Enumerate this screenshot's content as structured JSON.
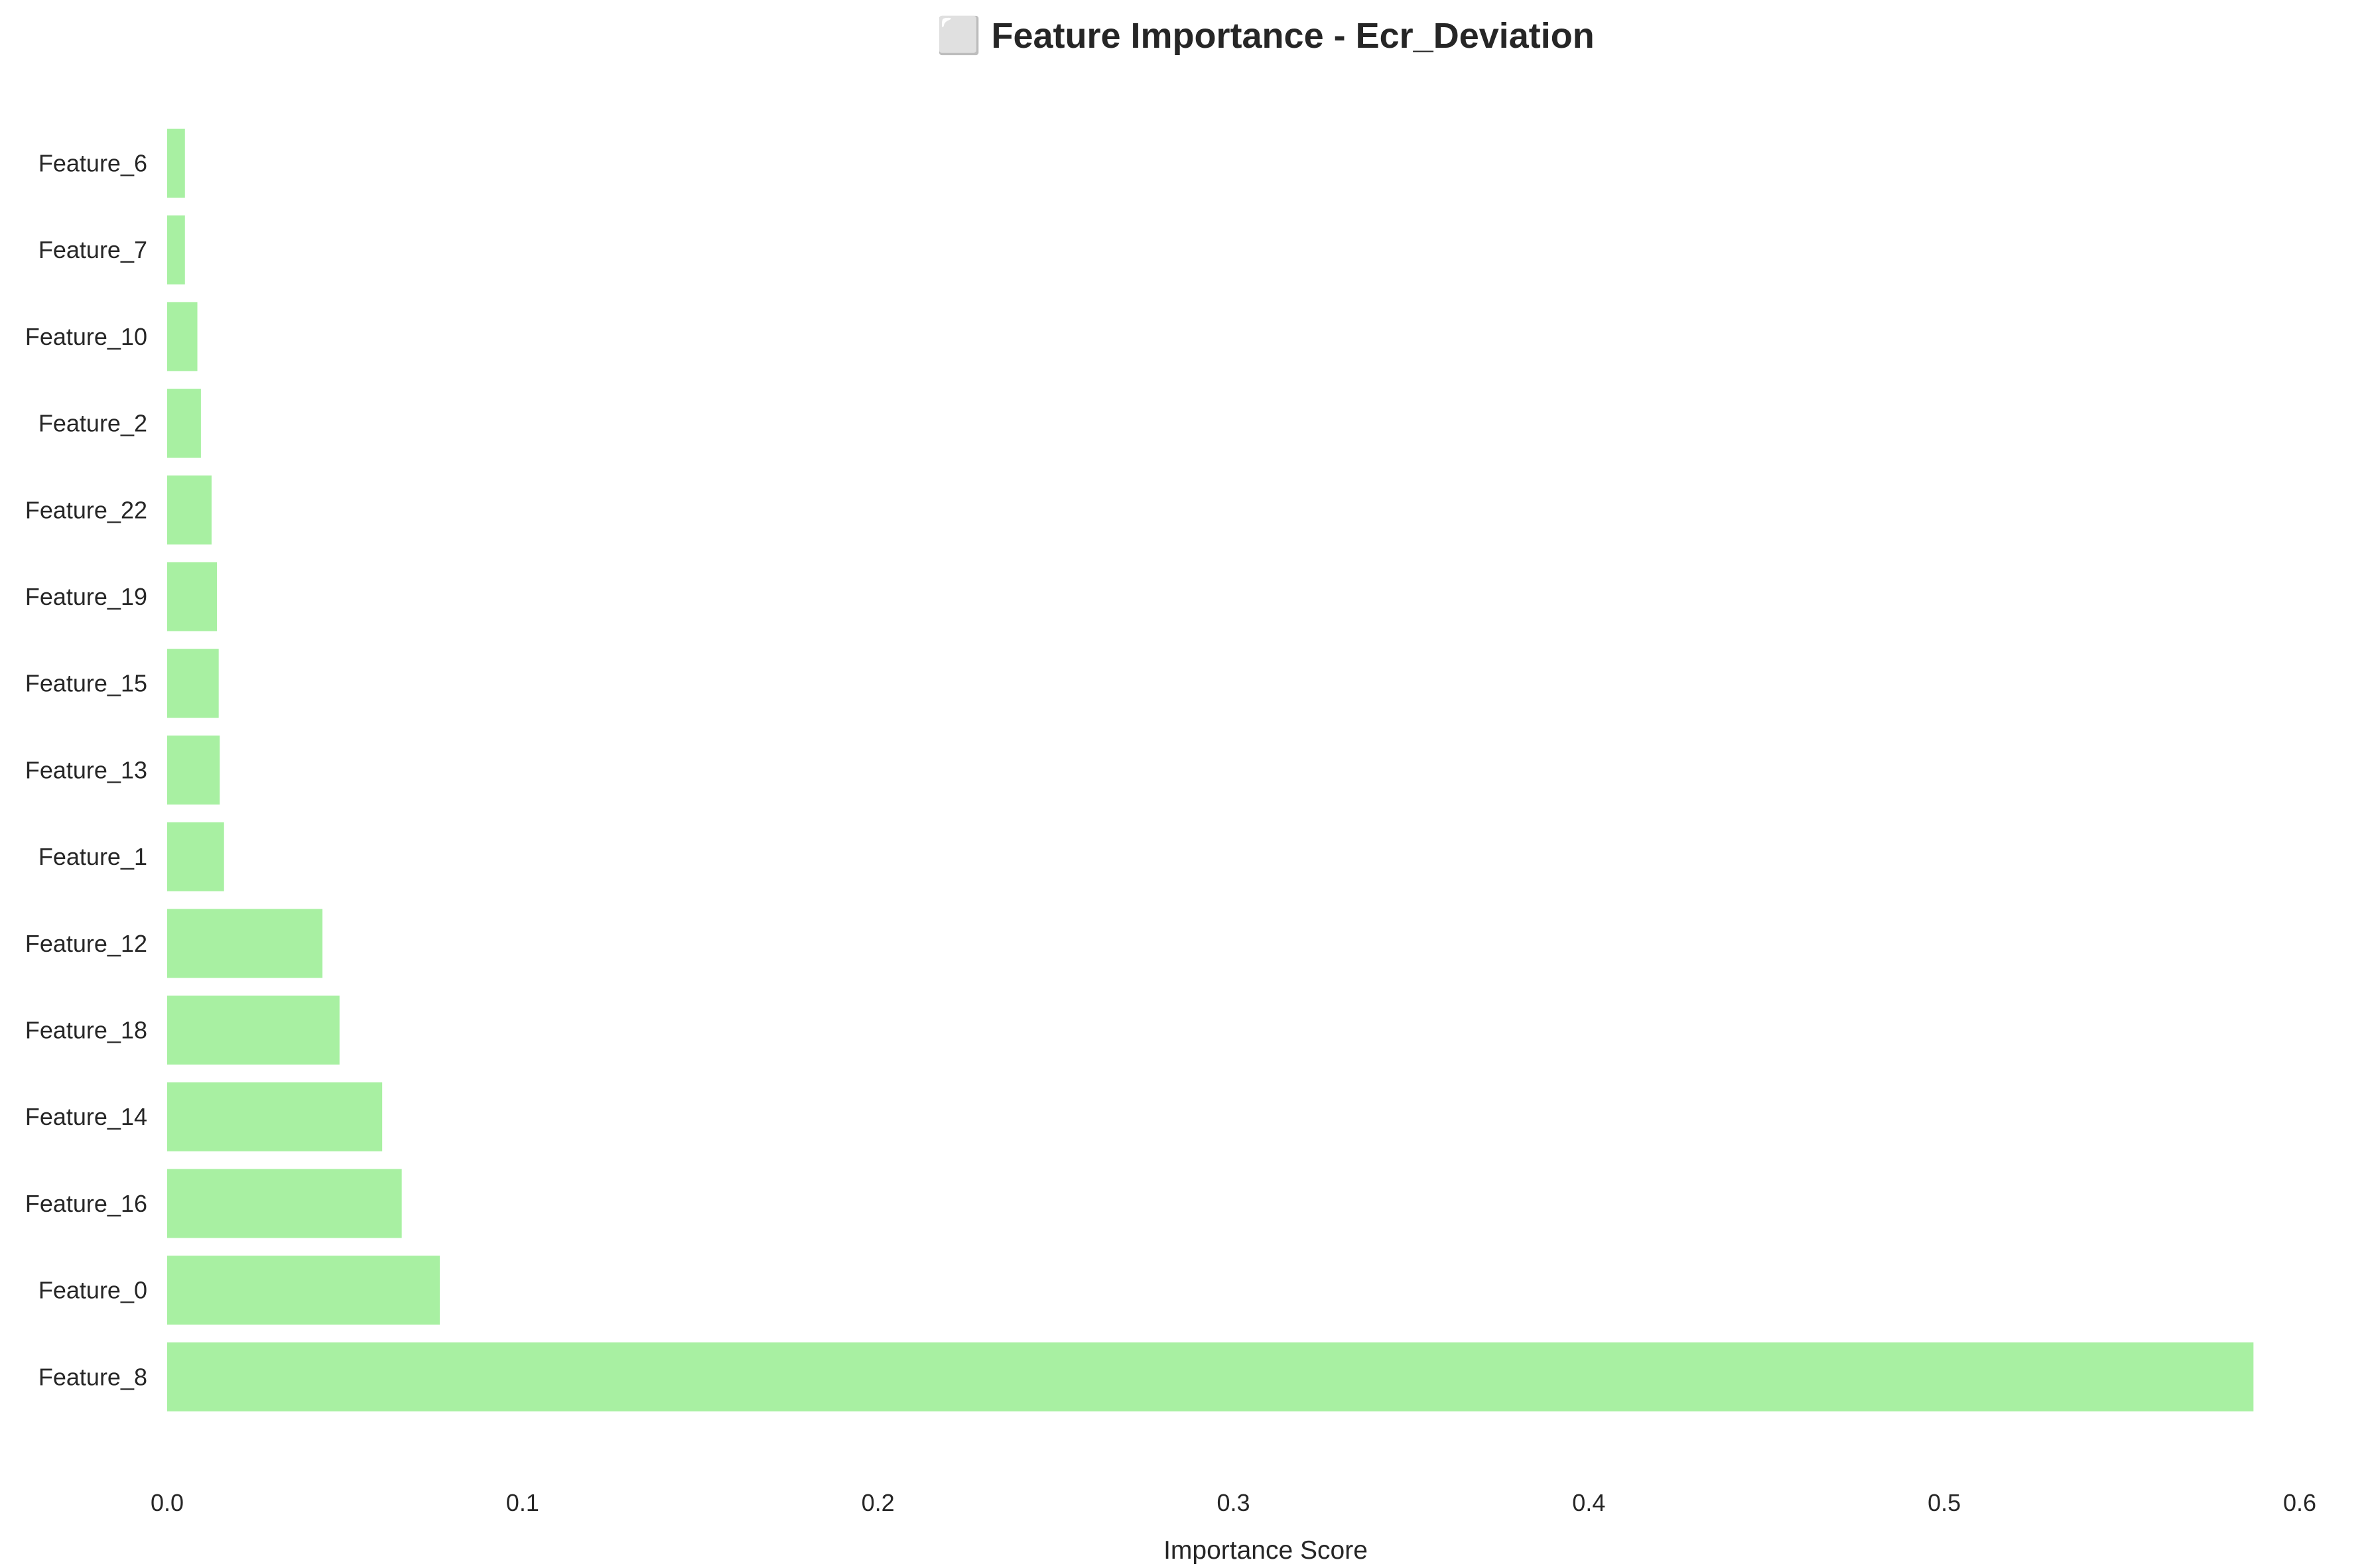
{
  "chart_data": {
    "type": "bar",
    "orientation": "horizontal",
    "title": "⬜ Feature Importance - Ecr_Deviation",
    "xlabel": "Importance Score",
    "ylabel": "",
    "xlim": [
      0,
      0.6
    ],
    "xticks": [
      0.0,
      0.1,
      0.2,
      0.3,
      0.4,
      0.5,
      0.6
    ],
    "xtick_labels": [
      "0.0",
      "0.1",
      "0.2",
      "0.3",
      "0.4",
      "0.5",
      "0.6"
    ],
    "grid": false,
    "bar_color": "#a8f0a2",
    "categories": [
      "Feature_6",
      "Feature_7",
      "Feature_10",
      "Feature_2",
      "Feature_22",
      "Feature_19",
      "Feature_15",
      "Feature_13",
      "Feature_1",
      "Feature_12",
      "Feature_18",
      "Feature_14",
      "Feature_16",
      "Feature_0",
      "Feature_8"
    ],
    "values": [
      0.005,
      0.005,
      0.0085,
      0.0095,
      0.0125,
      0.014,
      0.0145,
      0.0148,
      0.016,
      0.0437,
      0.0485,
      0.0605,
      0.066,
      0.0767,
      0.587
    ]
  }
}
